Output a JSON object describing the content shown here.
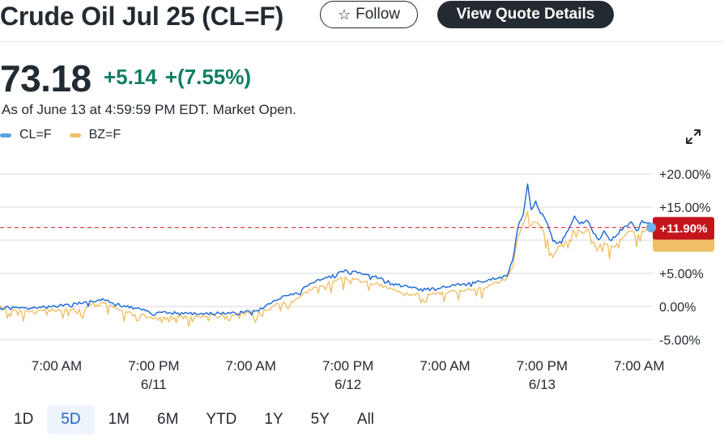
{
  "header": {
    "title": "Crude Oil Jul 25 (CL=F)",
    "follow_label": "Follow",
    "view_quote_label": "View Quote Details"
  },
  "quote": {
    "price": "73.18",
    "change": "+5.14",
    "change_percent": "+(7.55%)",
    "as_of": "As of June 13 at 4:59:59 PM EDT. Market Open.",
    "change_color": "#0f7e62"
  },
  "icons": {
    "follow": "star-icon",
    "expand": "expand-icon"
  },
  "chart_data": {
    "type": "line",
    "series": [
      {
        "name": "CL=F",
        "color": "#1a66d6"
      },
      {
        "name": "BZ=F",
        "color": "#f0c068"
      }
    ],
    "y_ticks": [
      "+20.00%",
      "+15.00%",
      "+5.00%",
      "0.00%",
      "-5.00%"
    ],
    "y_tick_values": [
      20,
      15,
      5,
      0,
      -5
    ],
    "ylim": [
      -5,
      20
    ],
    "x_ticks": [
      {
        "time": "7:00 AM",
        "date": ""
      },
      {
        "time": "7:00 PM",
        "date": "6/11"
      },
      {
        "time": "7:00 AM",
        "date": ""
      },
      {
        "time": "7:00 PM",
        "date": "6/12"
      },
      {
        "time": "7:00 AM",
        "date": ""
      },
      {
        "time": "7:00 PM",
        "date": "6/13"
      },
      {
        "time": "7:00 AM",
        "date": ""
      }
    ],
    "current_value": 11.9,
    "current_label": "+11.90%",
    "reference_color": "#e01a22",
    "grid": true,
    "legend": "top-left",
    "path_points": {
      "CL=F": [
        [
          0,
          0
        ],
        [
          6,
          -0.2
        ],
        [
          11,
          0.2
        ],
        [
          16,
          0.6
        ],
        [
          19,
          1.1
        ],
        [
          22,
          0.3
        ],
        [
          26,
          -0.4
        ],
        [
          28,
          -0.8
        ],
        [
          32,
          -0.9
        ],
        [
          38,
          -1.1
        ],
        [
          40,
          -1.0
        ],
        [
          44,
          -0.9
        ],
        [
          48,
          -0.5
        ],
        [
          50,
          0.5
        ],
        [
          53,
          1.6
        ],
        [
          55,
          2.0
        ],
        [
          58,
          3.7
        ],
        [
          62,
          4.8
        ],
        [
          64,
          5.4
        ],
        [
          67,
          5.0
        ],
        [
          70,
          4.4
        ],
        [
          73,
          3.5
        ],
        [
          76,
          3.0
        ],
        [
          79,
          2.6
        ],
        [
          82,
          2.9
        ],
        [
          84,
          3.2
        ],
        [
          87,
          3.5
        ],
        [
          90,
          3.9
        ],
        [
          94,
          4.7
        ],
        [
          95,
          7
        ],
        [
          96,
          12
        ],
        [
          97,
          14
        ],
        [
          97.8,
          18.4
        ],
        [
          98.5,
          14.5
        ],
        [
          99.3,
          16
        ],
        [
          100.5,
          14
        ],
        [
          101.5,
          12.5
        ],
        [
          102.5,
          10
        ],
        [
          103.5,
          9.5
        ],
        [
          105,
          11
        ],
        [
          106.5,
          13.5
        ],
        [
          107.5,
          12.5
        ],
        [
          109,
          13
        ],
        [
          110,
          11
        ],
        [
          111,
          10.3
        ],
        [
          112,
          11.3
        ],
        [
          113,
          10
        ],
        [
          114,
          10.5
        ],
        [
          115,
          11.5
        ],
        [
          116,
          12
        ],
        [
          117,
          12.6
        ],
        [
          118,
          11.5
        ],
        [
          119,
          12.8
        ],
        [
          120,
          12.6
        ],
        [
          121,
          12.2
        ]
      ],
      "BZ=F": [
        [
          0,
          0
        ],
        [
          6,
          -0.8
        ],
        [
          11,
          -0.5
        ],
        [
          16,
          0
        ],
        [
          19,
          0.7
        ],
        [
          22,
          -0.5
        ],
        [
          26,
          -1.3
        ],
        [
          28,
          -1.6
        ],
        [
          32,
          -1.5
        ],
        [
          38,
          -1.5
        ],
        [
          40,
          -1.3
        ],
        [
          44,
          -1.2
        ],
        [
          48,
          -0.8
        ],
        [
          50,
          0
        ],
        [
          53,
          0.8
        ],
        [
          55,
          1.2
        ],
        [
          58,
          2.8
        ],
        [
          62,
          3.8
        ],
        [
          64,
          4.3
        ],
        [
          67,
          3.8
        ],
        [
          70,
          3.3
        ],
        [
          73,
          2.5
        ],
        [
          76,
          2.0
        ],
        [
          79,
          1.8
        ],
        [
          82,
          2.0
        ],
        [
          84,
          2.3
        ],
        [
          87,
          2.6
        ],
        [
          90,
          3
        ],
        [
          94,
          4.2
        ],
        [
          95,
          6
        ],
        [
          96,
          10.5
        ],
        [
          97,
          12.5
        ],
        [
          97.8,
          14.5
        ],
        [
          98.5,
          12
        ],
        [
          99.3,
          13.3
        ],
        [
          100.5,
          11.5
        ],
        [
          101.5,
          10
        ],
        [
          102.5,
          7.5
        ],
        [
          103.5,
          9
        ],
        [
          105,
          10
        ],
        [
          106.5,
          12
        ],
        [
          107.5,
          11.2
        ],
        [
          109,
          11.5
        ],
        [
          110,
          9.7
        ],
        [
          111,
          8.8
        ],
        [
          112,
          9.8
        ],
        [
          113,
          8.8
        ],
        [
          114,
          9.3
        ],
        [
          115,
          10.2
        ],
        [
          116,
          10.8
        ],
        [
          117,
          11.5
        ],
        [
          118,
          10.5
        ],
        [
          119,
          11.6
        ],
        [
          120,
          11.6
        ],
        [
          121,
          11.3
        ]
      ]
    }
  },
  "ranges": [
    "1D",
    "5D",
    "1M",
    "6M",
    "YTD",
    "1Y",
    "5Y",
    "All"
  ],
  "active_range": "5D"
}
